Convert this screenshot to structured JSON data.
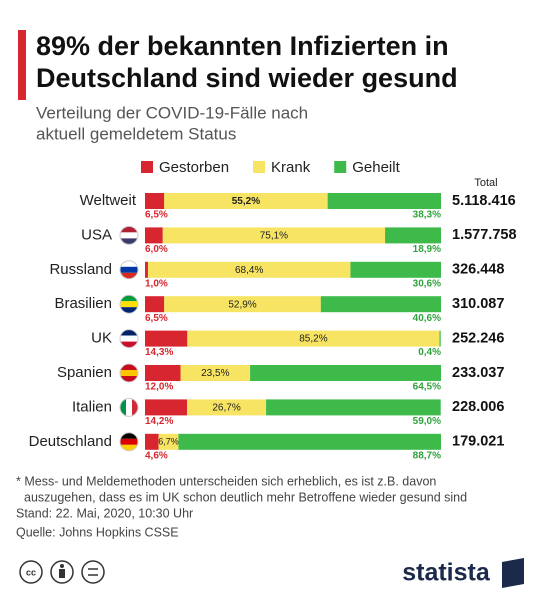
{
  "chart_data": {
    "type": "stacked-bar-100",
    "title": [
      "89% der bekannten Infizierten in",
      "Deutschland sind wieder gesund"
    ],
    "subtitle": [
      "Verteilung der COVID-19-Fälle nach",
      "aktuell gemeldetem Status"
    ],
    "categories": [
      "Weltweit",
      "USA",
      "Russland",
      "Brasilien",
      "UK",
      "Spanien",
      "Italien",
      "Deutschland"
    ],
    "xlim": [
      0,
      100
    ],
    "legend": "top",
    "series": [
      {
        "name": "Gestorben",
        "color": "#d7262f",
        "values": [
          6.5,
          6.0,
          1.0,
          6.5,
          14.3,
          12.0,
          14.2,
          4.6
        ],
        "value_labels": [
          "6,5%",
          "6,0%",
          "1,0%",
          "6,5%",
          "14,3%",
          "12,0%",
          "14,2%",
          "4,6%"
        ]
      },
      {
        "name": "Krank",
        "color": "#f7e463",
        "values": [
          55.2,
          75.1,
          68.4,
          52.9,
          85.2,
          23.5,
          26.7,
          6.7
        ],
        "value_labels": [
          "55,2%",
          "75,1%",
          "68,4%",
          "52,9%",
          "85,2%",
          "23,5%",
          "26,7%",
          "6,7%"
        ]
      },
      {
        "name": "Geheilt",
        "color": "#3dba4a",
        "values": [
          38.3,
          18.9,
          30.6,
          40.6,
          0.4,
          64.5,
          59.0,
          88.7
        ],
        "value_labels": [
          "38,3%",
          "18,9%",
          "30,6%",
          "40,6%",
          "0,4%",
          "64,5%",
          "59,0%",
          "88,7%"
        ]
      }
    ],
    "totals": {
      "name": "Total",
      "values": [
        5118416,
        1577758,
        326448,
        310087,
        252246,
        233037,
        228006,
        179021
      ],
      "value_labels": [
        "5.118.416",
        "1.577.758",
        "326.448",
        "310.087",
        "252.246",
        "233.037",
        "228.006",
        "179.021"
      ]
    },
    "notes": [
      "* Mess- und Meldemethoden unterscheiden sich erheblich, es ist z.B. davon",
      "auszugehen, dass es im UK schon deutlich mehr Betroffene wieder gesund sind",
      "Stand: 22. Mai, 2020, 10:30 Uhr",
      "Quelle: Johns Hopkins CSSE"
    ],
    "brand": "statista"
  }
}
